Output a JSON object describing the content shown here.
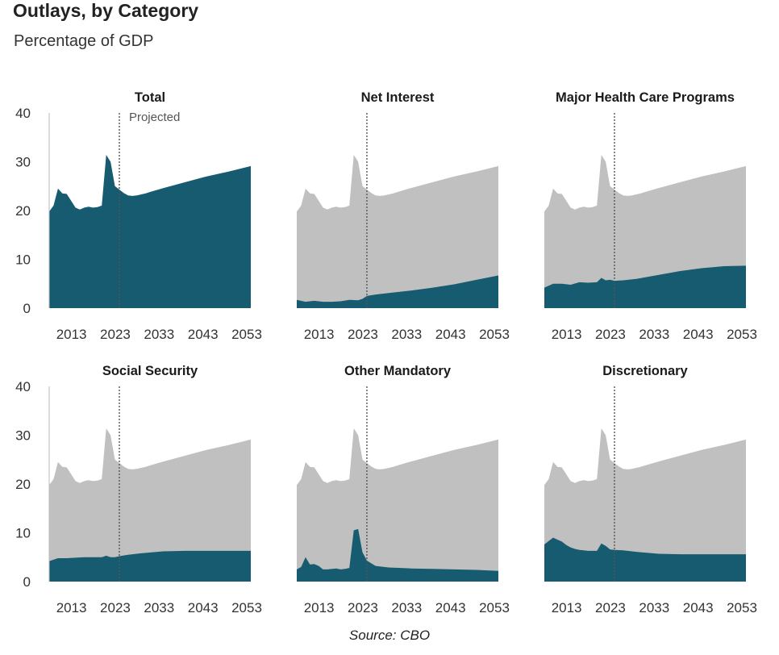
{
  "header": {
    "title": "Outlays, by Category",
    "subtitle": "Percentage of GDP"
  },
  "footer": {
    "source": "Source: CBO"
  },
  "colors": {
    "total_area": "#c0c0c0",
    "category_area": "#165b70"
  },
  "chart_data": {
    "type": "area",
    "layout": "small-multiples 2x3",
    "x_ticks": [
      2013,
      2023,
      2033,
      2043,
      2053
    ],
    "xlim": [
      2007,
      2053
    ],
    "y_ticks": [
      0,
      10,
      20,
      30,
      40
    ],
    "ylim": [
      0,
      40
    ],
    "projection_start": 2023,
    "projection_label": "Projected",
    "grid": false,
    "total": {
      "x": [
        2007,
        2008,
        2009,
        2010,
        2011,
        2012,
        2013,
        2014,
        2015,
        2016,
        2017,
        2018,
        2019,
        2020,
        2021,
        2022,
        2023,
        2024,
        2025,
        2026,
        2027,
        2028,
        2029,
        2030,
        2033,
        2038,
        2043,
        2048,
        2053
      ],
      "values": [
        19.8,
        21.0,
        24.5,
        23.5,
        23.4,
        22.0,
        20.6,
        20.2,
        20.6,
        20.8,
        20.6,
        20.7,
        21.0,
        31.4,
        30.0,
        25.0,
        24.3,
        23.6,
        23.1,
        23.0,
        23.1,
        23.3,
        23.5,
        23.8,
        24.6,
        25.8,
        27.0,
        28.0,
        29.1
      ]
    },
    "panels": [
      {
        "title": "Total",
        "show_projected_label": true,
        "x": [
          2007,
          2008,
          2009,
          2010,
          2011,
          2012,
          2013,
          2014,
          2015,
          2016,
          2017,
          2018,
          2019,
          2020,
          2021,
          2022,
          2023,
          2024,
          2025,
          2026,
          2027,
          2028,
          2029,
          2030,
          2033,
          2038,
          2043,
          2048,
          2053
        ],
        "values": [
          19.8,
          21.0,
          24.5,
          23.5,
          23.4,
          22.0,
          20.6,
          20.2,
          20.6,
          20.8,
          20.6,
          20.7,
          21.0,
          31.4,
          30.0,
          25.0,
          24.3,
          23.6,
          23.1,
          23.0,
          23.1,
          23.3,
          23.5,
          23.8,
          24.6,
          25.8,
          27.0,
          28.0,
          29.1
        ]
      },
      {
        "title": "Net Interest",
        "show_projected_label": false,
        "x": [
          2007,
          2009,
          2011,
          2013,
          2015,
          2017,
          2019,
          2021,
          2022,
          2023,
          2025,
          2028,
          2033,
          2038,
          2043,
          2048,
          2053
        ],
        "values": [
          1.7,
          1.3,
          1.5,
          1.3,
          1.3,
          1.4,
          1.7,
          1.6,
          1.9,
          2.5,
          2.8,
          3.1,
          3.6,
          4.2,
          4.9,
          5.8,
          6.7
        ]
      },
      {
        "title": "Major Health Care Programs",
        "show_projected_label": false,
        "x": [
          2007,
          2009,
          2011,
          2013,
          2015,
          2017,
          2019,
          2020,
          2021,
          2022,
          2023,
          2025,
          2028,
          2033,
          2038,
          2043,
          2048,
          2053
        ],
        "values": [
          4.2,
          5.0,
          5.0,
          4.8,
          5.3,
          5.2,
          5.3,
          6.2,
          5.7,
          5.8,
          5.6,
          5.7,
          6.0,
          6.8,
          7.6,
          8.2,
          8.6,
          8.7
        ]
      },
      {
        "title": "Social Security",
        "show_projected_label": false,
        "x": [
          2007,
          2009,
          2011,
          2013,
          2015,
          2017,
          2019,
          2020,
          2021,
          2022,
          2023,
          2025,
          2028,
          2033,
          2038,
          2043,
          2048,
          2053
        ],
        "values": [
          4.2,
          4.8,
          4.8,
          4.9,
          5.0,
          5.0,
          5.0,
          5.3,
          5.0,
          5.0,
          5.2,
          5.5,
          5.8,
          6.2,
          6.3,
          6.3,
          6.3,
          6.3
        ]
      },
      {
        "title": "Other Mandatory",
        "show_projected_label": false,
        "x": [
          2007,
          2008,
          2009,
          2010,
          2011,
          2012,
          2013,
          2014,
          2015,
          2016,
          2017,
          2018,
          2019,
          2020,
          2021,
          2022,
          2023,
          2025,
          2028,
          2033,
          2038,
          2043,
          2048,
          2053
        ],
        "values": [
          2.5,
          3.0,
          5.0,
          3.5,
          3.6,
          3.2,
          2.5,
          2.5,
          2.6,
          2.7,
          2.5,
          2.6,
          2.8,
          10.5,
          10.8,
          6.0,
          4.3,
          3.2,
          2.9,
          2.7,
          2.6,
          2.5,
          2.4,
          2.2
        ]
      },
      {
        "title": "Discretionary",
        "show_projected_label": false,
        "x": [
          2007,
          2008,
          2009,
          2010,
          2011,
          2012,
          2013,
          2014,
          2015,
          2016,
          2017,
          2018,
          2019,
          2020,
          2021,
          2022,
          2023,
          2025,
          2028,
          2033,
          2038,
          2043,
          2048,
          2053
        ],
        "values": [
          7.6,
          8.3,
          9.0,
          8.6,
          8.2,
          7.5,
          7.0,
          6.7,
          6.5,
          6.4,
          6.3,
          6.3,
          6.3,
          7.8,
          7.3,
          6.6,
          6.5,
          6.4,
          6.1,
          5.7,
          5.6,
          5.6,
          5.6,
          5.6
        ]
      }
    ]
  }
}
